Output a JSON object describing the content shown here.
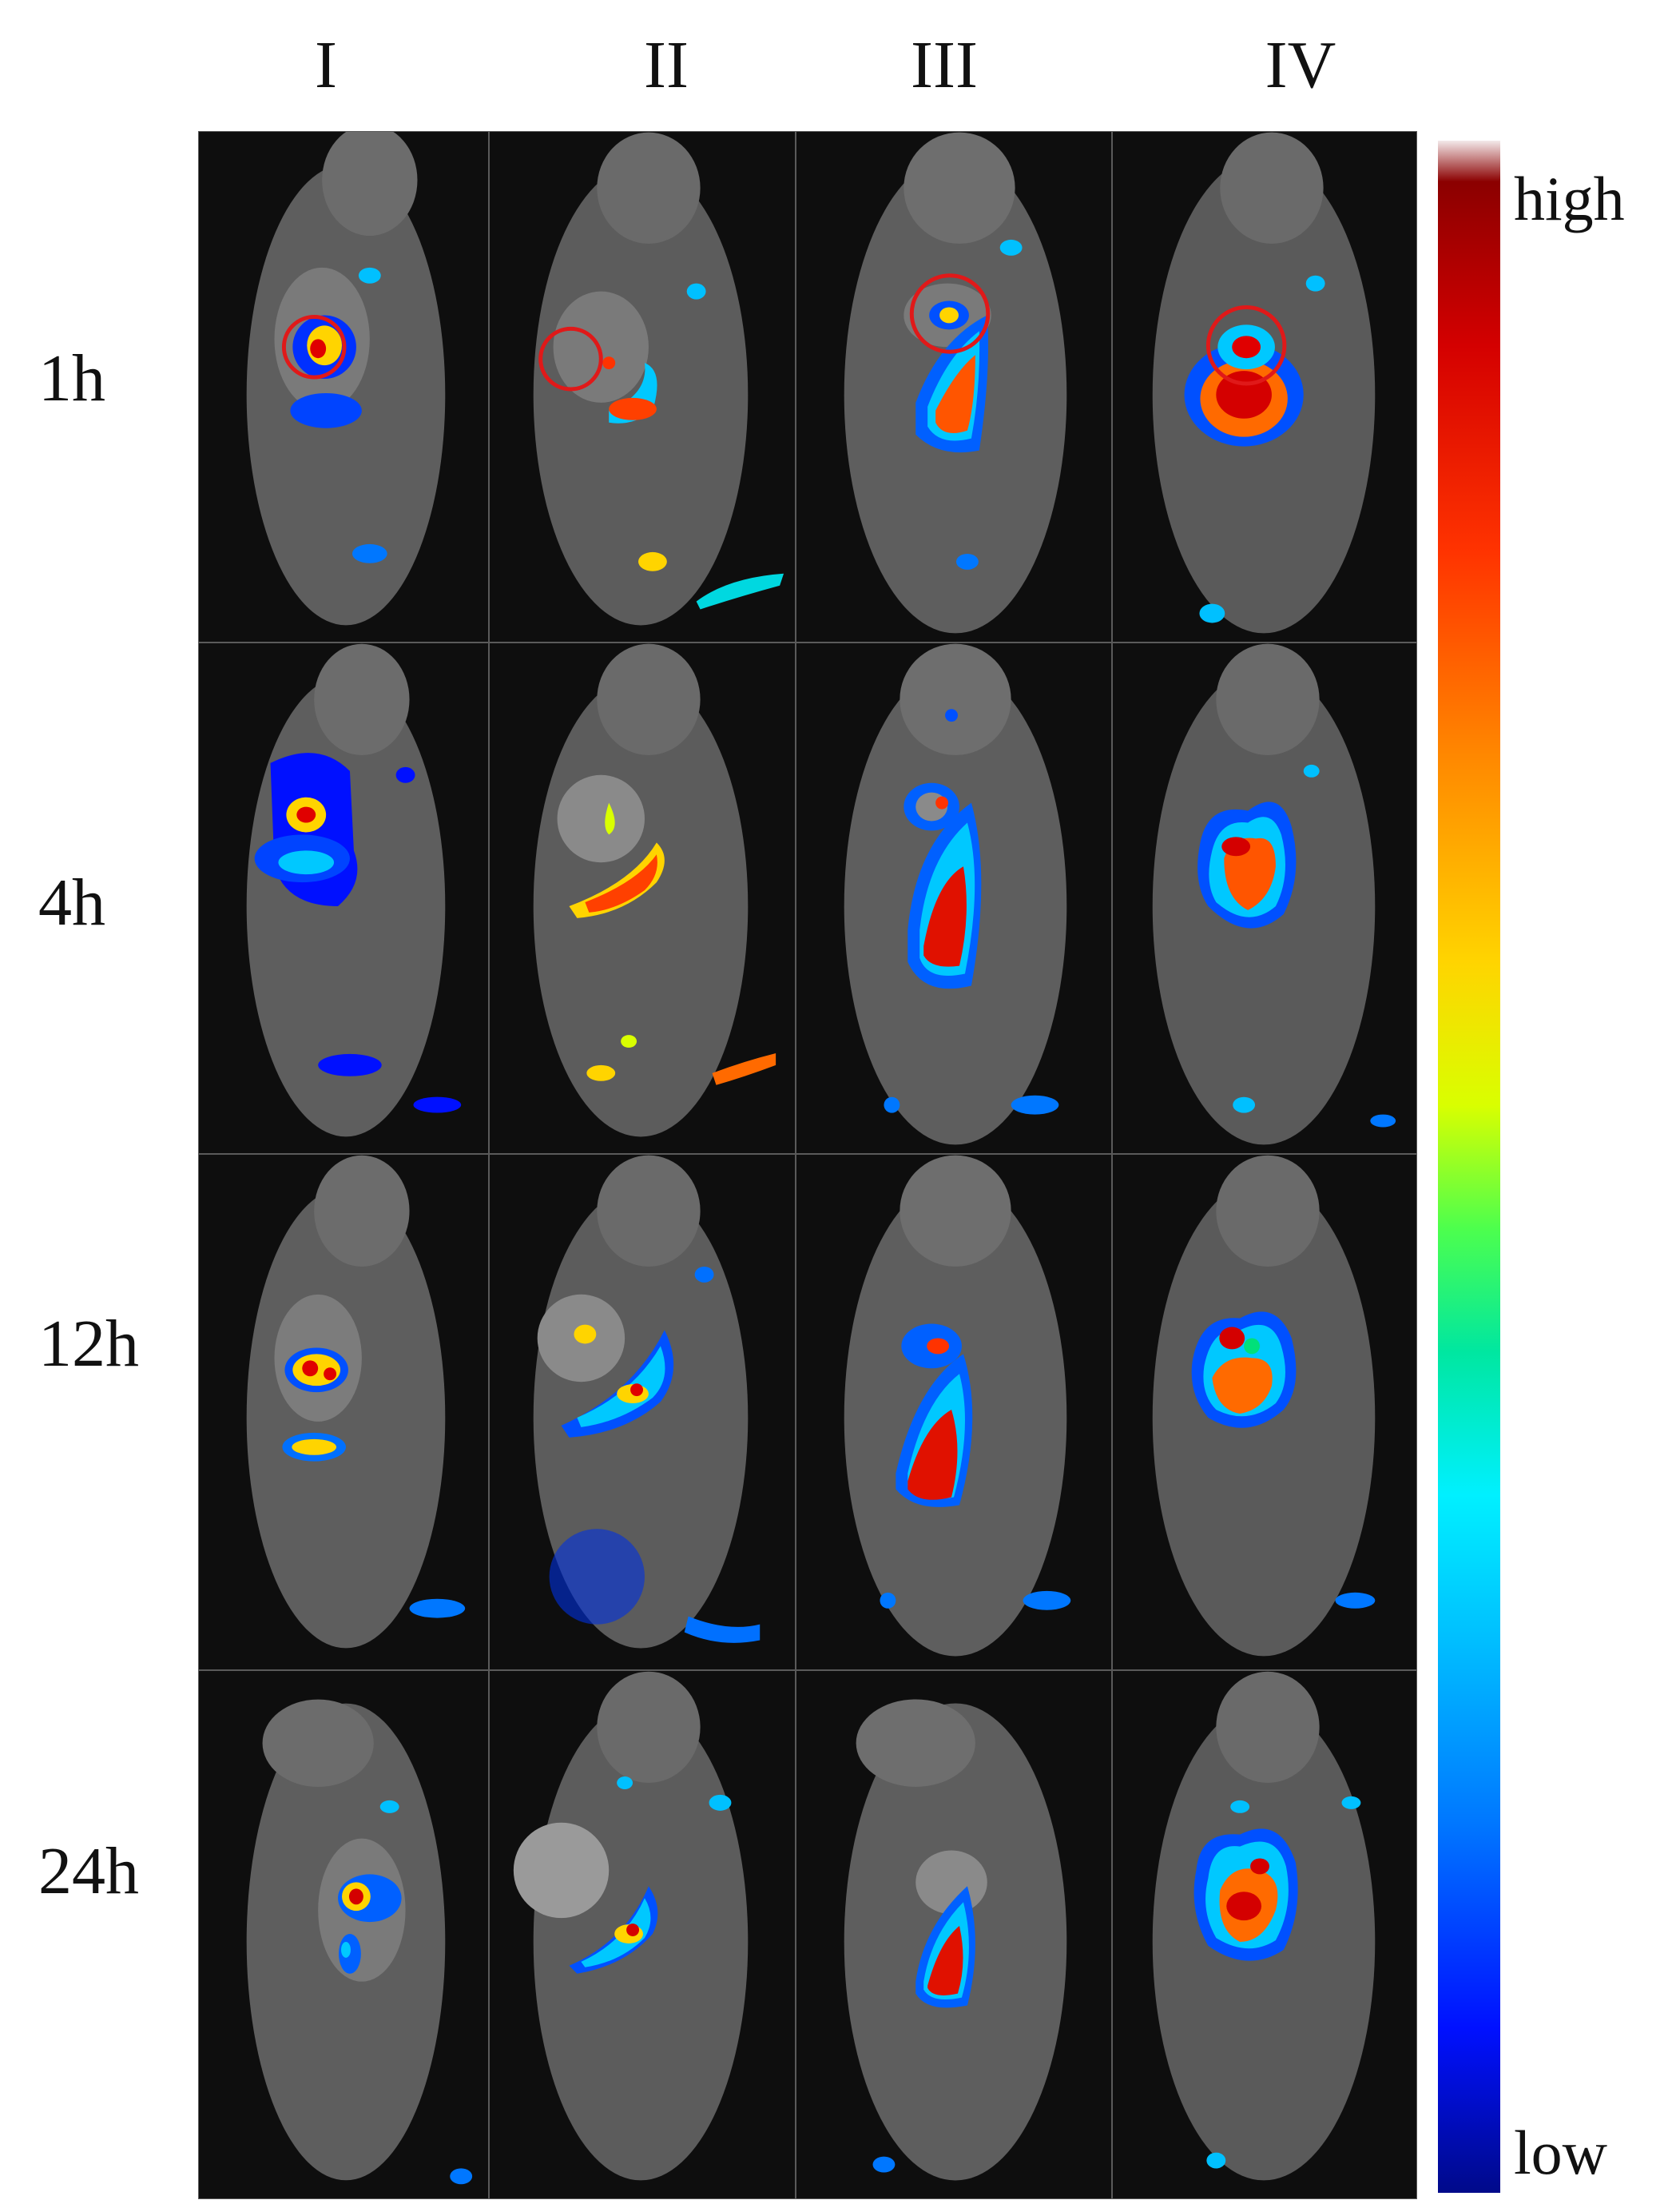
{
  "columns": [
    "I",
    "II",
    "III",
    "IV"
  ],
  "rows": [
    "1h",
    "4h",
    "12h",
    "24h"
  ],
  "colorbar": {
    "high_label": "high",
    "low_label": "low"
  },
  "colors": {
    "background": "#ffffff",
    "panel_background": "#0e0e0e",
    "marker_circle": "#e01919",
    "colormap": [
      "#000a8a",
      "#0010ff",
      "#0077ff",
      "#00bfff",
      "#00f0ff",
      "#00e7a0",
      "#4dff4d",
      "#d9ff00",
      "#ffd400",
      "#ff8800",
      "#ff3300",
      "#d40000",
      "#8b0000"
    ]
  }
}
